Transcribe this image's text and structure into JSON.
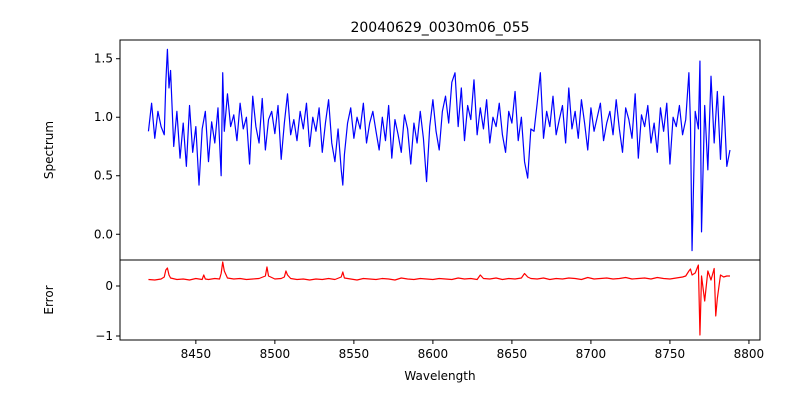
{
  "chart_data": [
    {
      "type": "line",
      "title": "20040629_0030m06_055",
      "xlabel": "",
      "ylabel": "Spectrum",
      "xlim": [
        8402,
        8807
      ],
      "ylim": [
        -0.22,
        1.66
      ],
      "yticks": [
        0.0,
        0.5,
        1.0,
        1.5
      ],
      "ytick_labels": [
        "0.0",
        "0.5",
        "1.0",
        "1.5"
      ],
      "color": "#0000ff",
      "series": [
        {
          "x": [
            8420,
            8422,
            8424,
            8426,
            8428,
            8430,
            8431,
            8432,
            8433,
            8434,
            8436,
            8438,
            8440,
            8442,
            8444,
            8446,
            8448,
            8450,
            8452,
            8454,
            8456,
            8458,
            8460,
            8462,
            8464,
            8466,
            8467,
            8468,
            8470,
            8472,
            8474,
            8476,
            8478,
            8480,
            8482,
            8484,
            8486,
            8488,
            8490,
            8492,
            8494,
            8496,
            8498,
            8500,
            8502,
            8504,
            8506,
            8508,
            8510,
            8512,
            8514,
            8516,
            8518,
            8520,
            8522,
            8524,
            8526,
            8528,
            8530,
            8532,
            8534,
            8536,
            8538,
            8540,
            8542,
            8543,
            8544,
            8546,
            8548,
            8550,
            8552,
            8554,
            8556,
            8558,
            8560,
            8562,
            8564,
            8566,
            8568,
            8570,
            8572,
            8574,
            8576,
            8578,
            8580,
            8582,
            8584,
            8586,
            8588,
            8590,
            8592,
            8594,
            8596,
            8598,
            8600,
            8602,
            8604,
            8606,
            8608,
            8610,
            8612,
            8614,
            8616,
            8618,
            8620,
            8622,
            8624,
            8626,
            8628,
            8630,
            8632,
            8634,
            8636,
            8638,
            8640,
            8642,
            8644,
            8646,
            8648,
            8650,
            8652,
            8654,
            8656,
            8658,
            8660,
            8662,
            8664,
            8666,
            8668,
            8670,
            8672,
            8674,
            8676,
            8678,
            8680,
            8682,
            8684,
            8686,
            8688,
            8690,
            8692,
            8694,
            8696,
            8698,
            8700,
            8702,
            8704,
            8706,
            8708,
            8710,
            8712,
            8714,
            8716,
            8718,
            8720,
            8722,
            8724,
            8726,
            8728,
            8730,
            8732,
            8734,
            8736,
            8738,
            8740,
            8742,
            8744,
            8746,
            8748,
            8750,
            8752,
            8754,
            8756,
            8758,
            8760,
            8762,
            8763,
            8764,
            8766,
            8768,
            8769,
            8770,
            8772,
            8774,
            8776,
            8778,
            8780,
            8782,
            8784,
            8786,
            8788
          ],
          "y": [
            0.88,
            1.12,
            0.82,
            1.05,
            0.92,
            0.85,
            1.3,
            1.58,
            1.25,
            1.4,
            0.75,
            1.05,
            0.65,
            0.95,
            0.58,
            1.1,
            0.7,
            0.92,
            0.42,
            0.9,
            1.05,
            0.62,
            0.96,
            0.78,
            1.08,
            0.5,
            1.38,
            0.88,
            1.2,
            0.92,
            1.02,
            0.8,
            1.12,
            0.9,
            1.0,
            0.6,
            1.18,
            0.92,
            0.78,
            1.16,
            0.72,
            0.98,
            1.05,
            0.86,
            1.1,
            0.64,
            0.95,
            1.2,
            0.85,
            0.98,
            0.8,
            1.05,
            0.9,
            1.12,
            0.75,
            1.0,
            0.88,
            1.08,
            0.7,
            0.95,
            1.15,
            0.78,
            0.62,
            0.9,
            0.55,
            0.42,
            0.68,
            0.95,
            1.08,
            0.82,
            1.0,
            0.9,
            1.12,
            0.78,
            0.95,
            1.05,
            0.88,
            0.72,
            1.0,
            0.8,
            1.1,
            0.65,
            0.98,
            0.85,
            0.7,
            1.02,
            0.9,
            0.6,
            0.95,
            0.78,
            1.05,
            0.82,
            0.45,
            0.92,
            1.15,
            0.88,
            0.72,
            1.05,
            1.18,
            0.95,
            1.3,
            1.38,
            0.92,
            1.25,
            0.8,
            1.1,
            0.98,
            1.32,
            0.85,
            1.08,
            0.9,
            1.15,
            0.78,
            1.0,
            0.92,
            1.12,
            0.85,
            0.7,
            1.05,
            0.95,
            1.22,
            0.8,
            1.0,
            0.62,
            0.48,
            0.9,
            0.88,
            1.12,
            1.38,
            0.82,
            1.05,
            0.92,
            1.18,
            0.85,
            0.98,
            1.1,
            0.78,
            1.25,
            0.9,
            1.05,
            0.82,
            1.15,
            0.95,
            0.72,
            1.08,
            0.88,
            1.0,
            1.12,
            0.8,
            0.95,
            1.05,
            0.85,
            1.15,
            0.9,
            0.7,
            1.08,
            0.98,
            0.82,
            1.2,
            0.65,
            1.02,
            0.92,
            1.1,
            0.78,
            0.95,
            0.7,
            1.08,
            0.88,
            1.12,
            0.6,
            1.0,
            0.92,
            1.1,
            0.85,
            0.98,
            1.38,
            0.95,
            -0.14,
            1.05,
            0.9,
            1.48,
            0.02,
            1.1,
            0.55,
            1.35,
            0.78,
            1.22,
            0.64,
            1.18,
            0.58,
            0.72
          ],
          "color": "#0000ff"
        }
      ]
    },
    {
      "type": "line",
      "title": "",
      "xlabel": "Wavelength",
      "ylabel": "Error",
      "xlim": [
        8402,
        8807
      ],
      "ylim": [
        -1.08,
        0.52
      ],
      "xticks": [
        8450,
        8500,
        8550,
        8600,
        8650,
        8700,
        8750,
        8800
      ],
      "xtick_labels": [
        "8450",
        "8500",
        "8550",
        "8600",
        "8650",
        "8700",
        "8750",
        "8800"
      ],
      "yticks": [
        0,
        -1
      ],
      "ytick_labels": [
        "0",
        "−1"
      ],
      "color": "#ff0000",
      "series": [
        {
          "x": [
            8420,
            8424,
            8428,
            8430,
            8431,
            8432,
            8433,
            8434,
            8438,
            8442,
            8446,
            8450,
            8454,
            8455,
            8456,
            8458,
            8462,
            8465,
            8466,
            8467,
            8468,
            8470,
            8474,
            8478,
            8482,
            8486,
            8490,
            8494,
            8495,
            8496,
            8500,
            8504,
            8506,
            8507,
            8508,
            8510,
            8514,
            8518,
            8522,
            8526,
            8530,
            8534,
            8538,
            8542,
            8543,
            8544,
            8548,
            8552,
            8556,
            8560,
            8564,
            8568,
            8572,
            8576,
            8580,
            8584,
            8588,
            8592,
            8596,
            8600,
            8604,
            8608,
            8612,
            8616,
            8620,
            8624,
            8628,
            8630,
            8632,
            8636,
            8640,
            8644,
            8648,
            8652,
            8656,
            8658,
            8660,
            8662,
            8666,
            8670,
            8674,
            8678,
            8682,
            8686,
            8690,
            8694,
            8698,
            8702,
            8706,
            8710,
            8714,
            8718,
            8722,
            8726,
            8730,
            8734,
            8738,
            8742,
            8746,
            8750,
            8754,
            8758,
            8760,
            8762,
            8763,
            8764,
            8766,
            8768,
            8769,
            8770,
            8772,
            8774,
            8776,
            8778,
            8779,
            8780,
            8782,
            8784,
            8786,
            8788
          ],
          "y": [
            0.13,
            0.12,
            0.14,
            0.18,
            0.32,
            0.36,
            0.22,
            0.16,
            0.13,
            0.14,
            0.12,
            0.15,
            0.13,
            0.22,
            0.14,
            0.13,
            0.15,
            0.14,
            0.25,
            0.48,
            0.3,
            0.16,
            0.14,
            0.15,
            0.13,
            0.14,
            0.15,
            0.2,
            0.38,
            0.2,
            0.14,
            0.15,
            0.18,
            0.3,
            0.22,
            0.15,
            0.13,
            0.14,
            0.12,
            0.14,
            0.13,
            0.15,
            0.13,
            0.18,
            0.28,
            0.16,
            0.14,
            0.12,
            0.15,
            0.14,
            0.13,
            0.15,
            0.14,
            0.12,
            0.16,
            0.14,
            0.13,
            0.15,
            0.14,
            0.13,
            0.15,
            0.14,
            0.13,
            0.16,
            0.14,
            0.15,
            0.13,
            0.22,
            0.15,
            0.14,
            0.16,
            0.13,
            0.15,
            0.14,
            0.16,
            0.25,
            0.18,
            0.15,
            0.14,
            0.16,
            0.13,
            0.15,
            0.14,
            0.16,
            0.15,
            0.13,
            0.17,
            0.14,
            0.15,
            0.16,
            0.14,
            0.15,
            0.17,
            0.14,
            0.15,
            0.16,
            0.14,
            0.17,
            0.15,
            0.14,
            0.16,
            0.18,
            0.2,
            0.3,
            0.34,
            0.22,
            0.26,
            0.42,
            -0.98,
            0.2,
            -0.3,
            0.3,
            0.12,
            0.35,
            -0.6,
            -0.25,
            0.22,
            0.18,
            0.2,
            0.2
          ],
          "color": "#ff0000"
        }
      ]
    }
  ]
}
